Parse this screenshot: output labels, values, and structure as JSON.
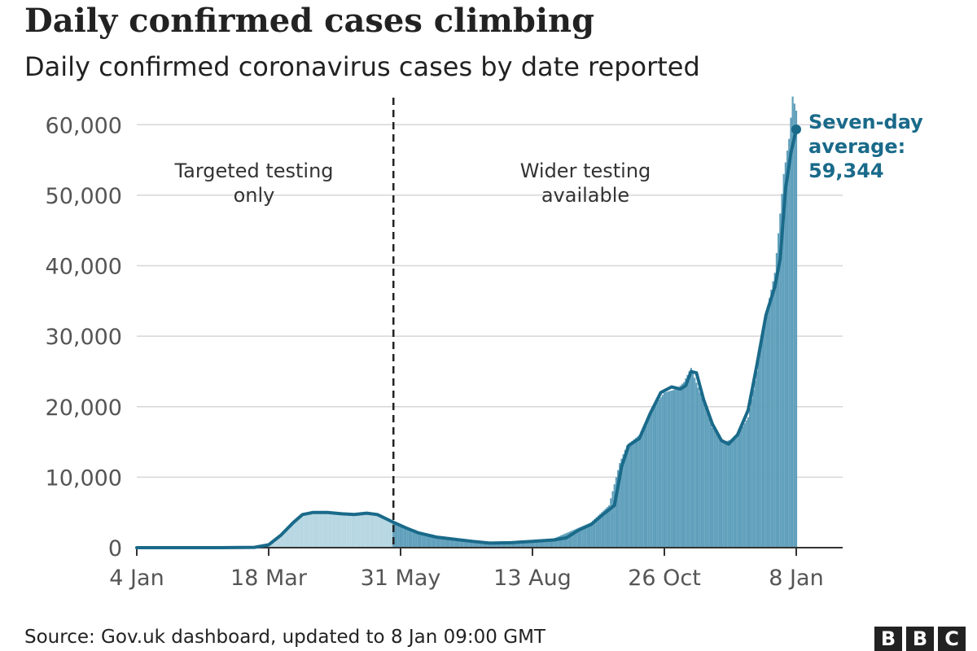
{
  "header": {
    "title": "Daily confirmed cases climbing",
    "subtitle": "Daily confirmed coronavirus cases by date reported"
  },
  "footer": {
    "source": "Source: Gov.uk dashboard, updated to 8 Jan 09:00 GMT",
    "logo_letters": [
      "B",
      "B",
      "C"
    ]
  },
  "colors": {
    "bars_early": "#b5d6e2",
    "bars_late": "#5f9fbb",
    "average_line": "#1a6a8a",
    "divider": "#222222",
    "gridline": "#d6d6d6",
    "text": "#222222"
  },
  "chart_data": {
    "type": "bar",
    "title": "Daily confirmed cases climbing",
    "subtitle": "Daily confirmed coronavirus cases by date reported",
    "x_type": "date",
    "x_range": [
      "2020-01-04",
      "2021-01-08"
    ],
    "ylim": [
      0,
      65000
    ],
    "yticks": [
      0,
      10000,
      20000,
      30000,
      40000,
      50000,
      60000
    ],
    "ytick_labels": [
      "0",
      "10,000",
      "20,000",
      "30,000",
      "40,000",
      "50,000",
      "60,000"
    ],
    "xticks": [
      "2020-01-04",
      "2020-03-18",
      "2020-05-31",
      "2020-08-13",
      "2020-10-26",
      "2021-01-08"
    ],
    "xtick_labels": [
      "4 Jan",
      "18 Mar",
      "31 May",
      "13 Aug",
      "26 Oct",
      "8 Jan"
    ],
    "grid": true,
    "divider": {
      "date": "2020-05-27",
      "left_label": [
        "Targeted testing",
        "only"
      ],
      "right_label": [
        "Wider testing",
        "available"
      ]
    },
    "seven_day_average": {
      "date": "2021-01-08",
      "value": 59344,
      "label": [
        "Seven-day",
        "average:",
        "59,344"
      ]
    },
    "series": [
      {
        "type": "bar",
        "points": [
          [
            "2020-01-04",
            0
          ],
          [
            "2020-02-15",
            0
          ],
          [
            "2020-03-01",
            10
          ],
          [
            "2020-03-10",
            60
          ],
          [
            "2020-03-18",
            500
          ],
          [
            "2020-03-25",
            1800
          ],
          [
            "2020-04-01",
            3600
          ],
          [
            "2020-04-06",
            4700
          ],
          [
            "2020-04-10",
            5000
          ],
          [
            "2020-04-18",
            5000
          ],
          [
            "2020-04-25",
            5000
          ],
          [
            "2020-05-01",
            4700
          ],
          [
            "2020-05-08",
            4800
          ],
          [
            "2020-05-15",
            4800
          ],
          [
            "2020-05-22",
            4200
          ],
          [
            "2020-05-27",
            3600
          ],
          [
            "2020-06-03",
            2800
          ],
          [
            "2020-06-10",
            2100
          ],
          [
            "2020-06-20",
            1600
          ],
          [
            "2020-07-01",
            1200
          ],
          [
            "2020-07-10",
            900
          ],
          [
            "2020-07-20",
            750
          ],
          [
            "2020-08-01",
            800
          ],
          [
            "2020-08-13",
            1000
          ],
          [
            "2020-08-25",
            1300
          ],
          [
            "2020-09-05",
            2500
          ],
          [
            "2020-09-15",
            3600
          ],
          [
            "2020-09-25",
            6000
          ],
          [
            "2020-10-01",
            12000
          ],
          [
            "2020-10-05",
            14500
          ],
          [
            "2020-10-12",
            16000
          ],
          [
            "2020-10-20",
            20000
          ],
          [
            "2020-10-26",
            22000
          ],
          [
            "2020-11-02",
            22500
          ],
          [
            "2020-11-06",
            23500
          ],
          [
            "2020-11-10",
            25500
          ],
          [
            "2020-11-15",
            22000
          ],
          [
            "2020-11-22",
            17000
          ],
          [
            "2020-11-28",
            15000
          ],
          [
            "2020-12-05",
            15500
          ],
          [
            "2020-12-12",
            18500
          ],
          [
            "2020-12-17",
            25000
          ],
          [
            "2020-12-22",
            33000
          ],
          [
            "2020-12-27",
            39000
          ],
          [
            "2021-01-01",
            53000
          ],
          [
            "2021-01-04",
            58000
          ],
          [
            "2021-01-06",
            64000
          ],
          [
            "2021-01-08",
            62000
          ]
        ]
      },
      {
        "type": "line",
        "points": [
          [
            "2020-01-04",
            0
          ],
          [
            "2020-02-20",
            0
          ],
          [
            "2020-03-10",
            50
          ],
          [
            "2020-03-18",
            400
          ],
          [
            "2020-03-25",
            1800
          ],
          [
            "2020-04-01",
            3600
          ],
          [
            "2020-04-06",
            4700
          ],
          [
            "2020-04-12",
            5000
          ],
          [
            "2020-04-20",
            5000
          ],
          [
            "2020-04-28",
            4800
          ],
          [
            "2020-05-05",
            4700
          ],
          [
            "2020-05-12",
            4900
          ],
          [
            "2020-05-18",
            4700
          ],
          [
            "2020-05-22",
            4200
          ],
          [
            "2020-05-27",
            3600
          ],
          [
            "2020-06-03",
            2800
          ],
          [
            "2020-06-10",
            2100
          ],
          [
            "2020-06-20",
            1500
          ],
          [
            "2020-06-30",
            1200
          ],
          [
            "2020-07-10",
            900
          ],
          [
            "2020-07-20",
            650
          ],
          [
            "2020-08-01",
            700
          ],
          [
            "2020-08-13",
            900
          ],
          [
            "2020-08-25",
            1100
          ],
          [
            "2020-09-01",
            1400
          ],
          [
            "2020-09-08",
            2500
          ],
          [
            "2020-09-15",
            3300
          ],
          [
            "2020-09-22",
            4800
          ],
          [
            "2020-09-28",
            6000
          ],
          [
            "2020-10-02",
            11500
          ],
          [
            "2020-10-06",
            14500
          ],
          [
            "2020-10-12",
            15500
          ],
          [
            "2020-10-18",
            19000
          ],
          [
            "2020-10-24",
            22000
          ],
          [
            "2020-10-30",
            22800
          ],
          [
            "2020-11-04",
            22500
          ],
          [
            "2020-11-07",
            23000
          ],
          [
            "2020-11-10",
            25000
          ],
          [
            "2020-11-13",
            24800
          ],
          [
            "2020-11-17",
            21000
          ],
          [
            "2020-11-22",
            17500
          ],
          [
            "2020-11-27",
            15200
          ],
          [
            "2020-12-01",
            14700
          ],
          [
            "2020-12-06",
            16000
          ],
          [
            "2020-12-12",
            19500
          ],
          [
            "2020-12-17",
            26000
          ],
          [
            "2020-12-22",
            33000
          ],
          [
            "2020-12-27",
            37000
          ],
          [
            "2020-12-30",
            41000
          ],
          [
            "2021-01-02",
            51000
          ],
          [
            "2021-01-05",
            56000
          ],
          [
            "2021-01-08",
            59344
          ]
        ]
      }
    ]
  }
}
